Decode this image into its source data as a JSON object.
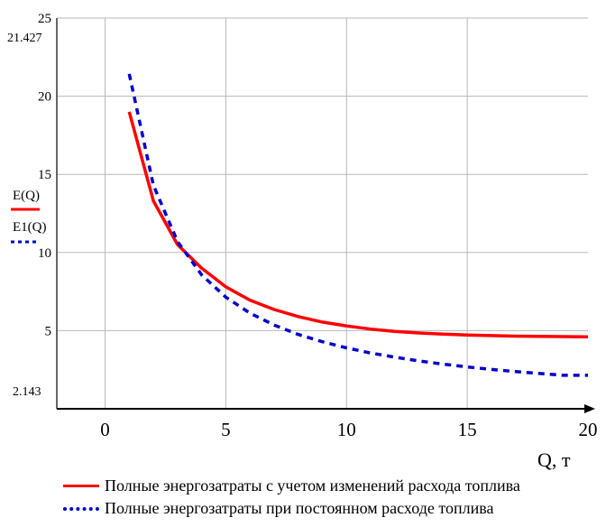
{
  "chart_data": {
    "type": "line",
    "xlabel": "Q, т",
    "xlim": [
      -2,
      20
    ],
    "ylim": [
      0,
      25
    ],
    "x_ticks": [
      "0",
      "5",
      "10",
      "15",
      "20"
    ],
    "y_ticks": [
      "5",
      "10",
      "15",
      "20",
      "25"
    ],
    "y_limit_labels": {
      "upper": "21.427",
      "lower": "2.143"
    },
    "grid": true,
    "series": [
      {
        "name": "E(Q)",
        "color": "#ff0000",
        "style": "solid",
        "x": [
          1,
          2,
          3,
          4,
          5,
          6,
          7,
          8,
          9,
          10,
          11,
          12,
          13,
          14,
          15,
          16,
          17,
          18,
          19,
          20
        ],
        "y": [
          19.0,
          13.3,
          10.5,
          9.0,
          7.8,
          6.95,
          6.35,
          5.9,
          5.55,
          5.3,
          5.1,
          4.95,
          4.85,
          4.78,
          4.72,
          4.68,
          4.65,
          4.63,
          4.62,
          4.6
        ]
      },
      {
        "name": "E1(Q)",
        "color": "#0000cc",
        "style": "dotted",
        "x": [
          1,
          2,
          3,
          4,
          5,
          6,
          7,
          8,
          9,
          10,
          11,
          12,
          13,
          14,
          15,
          16,
          17,
          18,
          19,
          20
        ],
        "y": [
          21.427,
          14.3,
          10.7,
          8.57,
          7.14,
          6.12,
          5.36,
          4.76,
          4.29,
          3.9,
          3.57,
          3.3,
          3.06,
          2.86,
          2.68,
          2.52,
          2.38,
          2.26,
          2.14,
          2.143
        ]
      }
    ],
    "legend": [
      {
        "label": "Полные энергозатраты с учетом изменений расхода топлива",
        "color": "#ff0000",
        "style": "solid"
      },
      {
        "label": "Полные энергозатраты при постоянном расходе топлива",
        "color": "#0000cc",
        "style": "dotted"
      }
    ]
  }
}
